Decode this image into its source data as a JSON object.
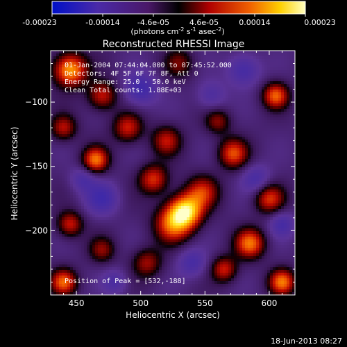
{
  "colorbar": {
    "tick_labels": [
      "-0.00023",
      "-0.00014",
      "-4.6e-05",
      "4.6e-05",
      "0.00014",
      "0.00023"
    ],
    "units_label": "(photons cm",
    "units_exp1": "-2",
    "units_mid": " s",
    "units_exp2": "-1",
    "units_tail": " asec",
    "units_exp3": "-2",
    "units_close": ")",
    "range": [
      -0.00023,
      0.00023
    ]
  },
  "chart_data": {
    "type": "heatmap",
    "title": "Reconstructed RHESSI Image",
    "xlabel": "Heliocentric X (arcsec)",
    "ylabel": "Heliocentric Y (arcsec)",
    "xlim": [
      430,
      620
    ],
    "ylim": [
      -250,
      -60
    ],
    "x_ticks": [
      450,
      500,
      550,
      600
    ],
    "y_ticks": [
      -100,
      -150,
      -200
    ],
    "x_tick_labels": [
      "450",
      "500",
      "550",
      "600"
    ],
    "y_tick_labels": [
      "−100",
      "−150",
      "−200"
    ],
    "peak": [
      532,
      -188
    ],
    "info_lines": [
      "01-Jan-2004 07:44:04.000 to 07:45:52.000",
      "Detectors: 4F 5F 6F 7F 8F, Att 0",
      "Energy Range: 25.0 - 50.0 keV",
      "Clean    Total counts: 1.88E+03"
    ],
    "peak_label": "Position of Peak = [532,-188]",
    "blobs": [
      {
        "x": 535,
        "y": -185,
        "amp": 1.0,
        "s": 9
      },
      {
        "x": 525,
        "y": -195,
        "amp": 0.7,
        "s": 10
      },
      {
        "x": 548,
        "y": -170,
        "amp": 0.55,
        "s": 9
      },
      {
        "x": 445,
        "y": -75,
        "amp": 0.9,
        "s": 9
      },
      {
        "x": 470,
        "y": -95,
        "amp": 0.55,
        "s": 8
      },
      {
        "x": 440,
        "y": -120,
        "amp": 0.5,
        "s": 7
      },
      {
        "x": 490,
        "y": -120,
        "amp": 0.55,
        "s": 8
      },
      {
        "x": 520,
        "y": -130,
        "amp": 0.5,
        "s": 8
      },
      {
        "x": 465,
        "y": -145,
        "amp": 0.75,
        "s": 7
      },
      {
        "x": 510,
        "y": -160,
        "amp": 0.6,
        "s": 8
      },
      {
        "x": 572,
        "y": -140,
        "amp": 0.65,
        "s": 8
      },
      {
        "x": 560,
        "y": -115,
        "amp": 0.4,
        "s": 7
      },
      {
        "x": 605,
        "y": -95,
        "amp": 0.7,
        "s": 7
      },
      {
        "x": 600,
        "y": -175,
        "amp": 0.6,
        "s": 8
      },
      {
        "x": 585,
        "y": -210,
        "amp": 0.75,
        "s": 8
      },
      {
        "x": 445,
        "y": -195,
        "amp": 0.55,
        "s": 7
      },
      {
        "x": 470,
        "y": -215,
        "amp": 0.4,
        "s": 7
      },
      {
        "x": 505,
        "y": -225,
        "amp": 0.45,
        "s": 8
      },
      {
        "x": 565,
        "y": -230,
        "amp": 0.55,
        "s": 7
      },
      {
        "x": 610,
        "y": -240,
        "amp": 0.75,
        "s": 7
      },
      {
        "x": 440,
        "y": -240,
        "amp": 0.7,
        "s": 7
      },
      {
        "x": 530,
        "y": -70,
        "amp": 0.35,
        "s": 8
      },
      {
        "x": 470,
        "y": -175,
        "amp": -0.4,
        "s": 9
      },
      {
        "x": 500,
        "y": -90,
        "amp": -0.45,
        "s": 9
      },
      {
        "x": 580,
        "y": -75,
        "amp": -0.4,
        "s": 9
      },
      {
        "x": 590,
        "y": -160,
        "amp": -0.35,
        "s": 8
      },
      {
        "x": 455,
        "y": -160,
        "amp": -0.3,
        "s": 7
      },
      {
        "x": 540,
        "y": -225,
        "amp": -0.35,
        "s": 8
      },
      {
        "x": 610,
        "y": -195,
        "amp": -0.35,
        "s": 7
      },
      {
        "x": 555,
        "y": -95,
        "amp": -0.3,
        "s": 8
      },
      {
        "x": 480,
        "y": -240,
        "amp": -0.3,
        "s": 7
      }
    ]
  },
  "footer": {
    "timestamp": "18-Jun-2013 08:27"
  }
}
